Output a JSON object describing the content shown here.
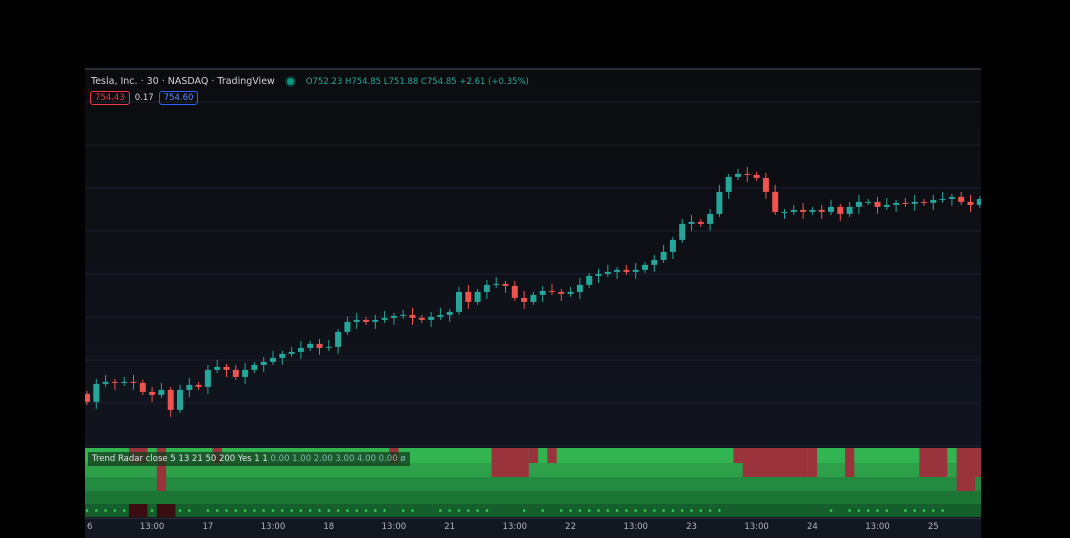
{
  "header": {
    "symbol": "Tesla, Inc. · 30 · NASDAQ · TradingView",
    "ohlc": "O752.23 H754.85 L751.88 C754.85 +2.61 (+0.35%)",
    "bid": "754.43",
    "spread": "0.17",
    "ask": "754.60"
  },
  "indicator": {
    "label": "Trend Radar",
    "params": "close 5 13 21 50 200 Yes 1 1",
    "values": "0.00 1.00 2.00 3.00 4.00 0.00 ø",
    "row_colors": [
      "#32b551",
      "#2ea04a",
      "#238b40",
      "#1d7535",
      "#145f2b"
    ],
    "red_color": "#9a333b",
    "dark_red_color": "#3a0d10",
    "rows_red": [
      [
        [
          5,
          6
        ],
        [
          8,
          8
        ],
        [
          14,
          14
        ],
        [
          33,
          33
        ],
        [
          44,
          47
        ],
        [
          48,
          48
        ],
        [
          50,
          50
        ],
        [
          70,
          77
        ],
        [
          78,
          78
        ],
        [
          82,
          82
        ],
        [
          90,
          92
        ],
        [
          94,
          96
        ]
      ],
      [
        [
          8,
          8
        ],
        [
          44,
          47
        ],
        [
          71,
          77
        ],
        [
          78,
          78
        ],
        [
          82,
          82
        ],
        [
          90,
          92
        ],
        [
          94,
          96
        ]
      ],
      [
        [
          8,
          8
        ],
        [
          94,
          95
        ]
      ],
      [],
      [
        [
          5,
          6
        ],
        [
          8,
          9
        ]
      ]
    ],
    "no_dot_bars": [
      5,
      6,
      8,
      9,
      12,
      33,
      36,
      37,
      44,
      45,
      46,
      48,
      50,
      69,
      70,
      71,
      72,
      73,
      74,
      75,
      76,
      77,
      78,
      79,
      81,
      87,
      93,
      94,
      95,
      96
    ]
  },
  "xaxis": [
    {
      "label": "6",
      "bar": 0
    },
    {
      "label": "13:00",
      "bar": 7
    },
    {
      "label": "17",
      "bar": 13
    },
    {
      "label": "13:00",
      "bar": 20
    },
    {
      "label": "18",
      "bar": 26
    },
    {
      "label": "13:00",
      "bar": 33
    },
    {
      "label": "21",
      "bar": 39
    },
    {
      "label": "13:00",
      "bar": 46
    },
    {
      "label": "22",
      "bar": 52
    },
    {
      "label": "13:00",
      "bar": 59
    },
    {
      "label": "23",
      "bar": 65
    },
    {
      "label": "13:00",
      "bar": 72
    },
    {
      "label": "24",
      "bar": 78
    },
    {
      "label": "13:00",
      "bar": 85
    },
    {
      "label": "25",
      "bar": 91
    }
  ],
  "colors": {
    "up": "#26a69a",
    "down": "#ef5350",
    "grid": "#1c2030"
  },
  "chart_data": {
    "type": "candlestick",
    "interval": "30",
    "closes": [
      658.4,
      667.4,
      668.4,
      667.9,
      668.4,
      667.9,
      663.4,
      661.9,
      664.4,
      654.4,
      664.4,
      666.9,
      665.9,
      674.4,
      675.9,
      674.4,
      670.9,
      674.4,
      676.9,
      678.4,
      680.4,
      682.4,
      683.4,
      685.4,
      687.4,
      685.4,
      685.9,
      693.4,
      698.4,
      699.4,
      698.4,
      699.4,
      700.4,
      701.4,
      701.9,
      700.4,
      699.4,
      700.9,
      701.9,
      703.4,
      713.4,
      708.4,
      713.4,
      716.9,
      717.4,
      716.4,
      710.4,
      708.4,
      711.9,
      713.9,
      713.4,
      712.4,
      713.4,
      716.9,
      721.4,
      722.4,
      723.4,
      724.4,
      723.4,
      724.4,
      726.9,
      729.4,
      733.4,
      739.4,
      747.4,
      748.4,
      747.4,
      752.4,
      763.4,
      770.9,
      772.4,
      771.9,
      770.4,
      763.4,
      753.4,
      753.4,
      754.4,
      753.4,
      754.4,
      753.4,
      755.9,
      752.4,
      755.9,
      758.4,
      758.4,
      755.9,
      756.9,
      757.9,
      757.4,
      758.4,
      757.9,
      759.4,
      759.9,
      760.9,
      758.4,
      756.9,
      759.9,
      753.9,
      754.9
    ]
  }
}
